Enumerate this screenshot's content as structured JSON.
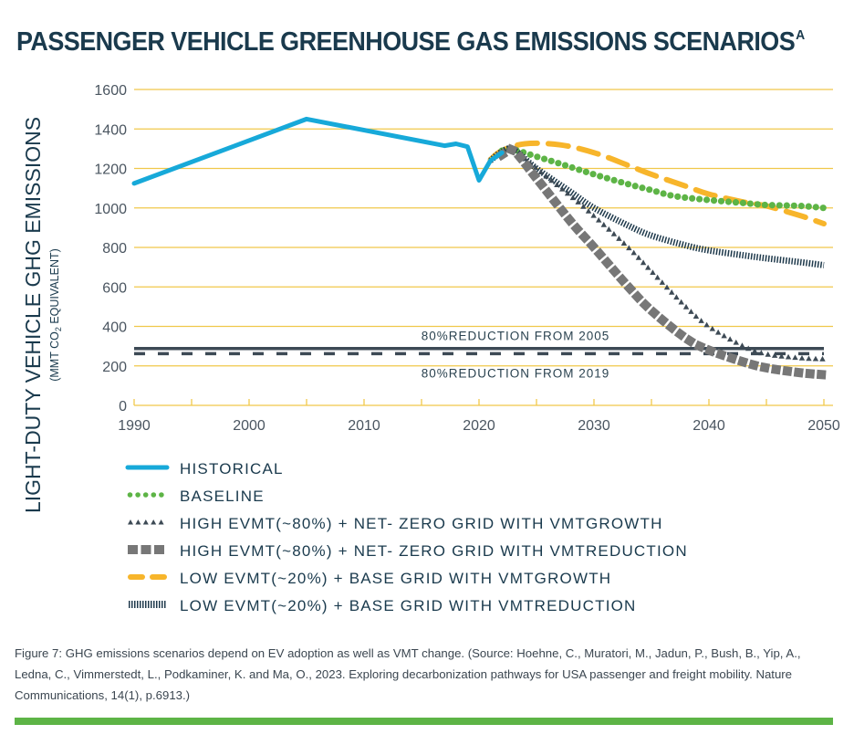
{
  "title": {
    "text": "PASSENGER VEHICLE GREENHOUSE GAS EMISSIONS SCENARIOS",
    "superscript": "A"
  },
  "chart_data": {
    "type": "line",
    "title": "PASSENGER VEHICLE GREENHOUSE GAS EMISSIONS SCENARIOS",
    "xlabel": "",
    "ylabel": "LIGHT-DUTY VEHICLE GHG EMISSIONS",
    "ylabel_sub_prefix": "(MMT CO",
    "ylabel_sub_subscript": "2",
    "ylabel_sub_suffix": " EQUIVALENT)",
    "xlim": [
      1990,
      2050
    ],
    "ylim": [
      0,
      1600
    ],
    "x_ticks": [
      1990,
      1995,
      2000,
      2005,
      2010,
      2015,
      2020,
      2025,
      2030,
      2035,
      2040,
      2045,
      2050
    ],
    "x_tick_labels": [
      "1990",
      "2000",
      "2010",
      "2020",
      "2030",
      "2040",
      "2050"
    ],
    "x_tick_label_values": [
      1990,
      2000,
      2010,
      2020,
      2030,
      2040,
      2050
    ],
    "y_ticks": [
      0,
      200,
      400,
      600,
      800,
      1000,
      1200,
      1400,
      1600
    ],
    "y_tick_labels": [
      "0",
      "200",
      "400",
      "600",
      "800",
      "1000",
      "1200",
      "1400",
      "1600"
    ],
    "grid": "horizontal",
    "grid_color": "#f0c84a",
    "legend_position": "bottom",
    "series": [
      {
        "id": "historical",
        "name": "HISTORICAL",
        "style": "solid",
        "color": "#17a9d9",
        "x": [
          1990,
          2005,
          2017,
          2018,
          2019,
          2020,
          2021,
          2022
        ],
        "y": [
          1124,
          1450,
          1315,
          1325,
          1310,
          1140,
          1240,
          1280
        ]
      },
      {
        "id": "baseline",
        "name": "BASELINE",
        "style": "dots",
        "color": "#5db446",
        "x": [
          2022,
          2023,
          2025,
          2027,
          2030,
          2033,
          2035,
          2037,
          2040,
          2043,
          2045,
          2048,
          2050
        ],
        "y": [
          1290,
          1295,
          1260,
          1225,
          1170,
          1120,
          1090,
          1060,
          1040,
          1025,
          1015,
          1010,
          1000
        ]
      },
      {
        "id": "high-ev-growth",
        "name": "HIGH EVMT(~80%) + NET- ZERO GRID WITH VMTGROWTH",
        "style": "triangles",
        "color": "#3d4a55",
        "x": [
          2022,
          2023,
          2025,
          2028,
          2030,
          2033,
          2035,
          2038,
          2040,
          2043,
          2045,
          2048,
          2050
        ],
        "y": [
          1280,
          1295,
          1200,
          1060,
          960,
          800,
          680,
          500,
          400,
          300,
          260,
          240,
          235
        ]
      },
      {
        "id": "high-ev-reduction",
        "name": "HIGH EVMT(~80%) + NET- ZERO GRID WITH VMTREDUCTION",
        "style": "squares",
        "color": "#777777",
        "x": [
          2022,
          2023,
          2025,
          2028,
          2030,
          2033,
          2035,
          2038,
          2040,
          2043,
          2045,
          2048,
          2050
        ],
        "y": [
          1270,
          1290,
          1150,
          930,
          800,
          600,
          480,
          340,
          280,
          220,
          190,
          165,
          155
        ]
      },
      {
        "id": "low-ev-growth",
        "name": "LOW EVMT(~20%) + BASE GRID WITH VMTGROWTH",
        "style": "dashed",
        "color": "#f7b52b",
        "x": [
          2021,
          2022,
          2024,
          2027,
          2030,
          2033,
          2035,
          2038,
          2040,
          2043,
          2045,
          2048,
          2050
        ],
        "y": [
          1245,
          1290,
          1325,
          1320,
          1280,
          1215,
          1170,
          1110,
          1070,
          1030,
          1010,
          960,
          920
        ]
      },
      {
        "id": "low-ev-reduction",
        "name": "LOW EVMT(~20%) + BASE GRID WITH VMTREDUCTION",
        "style": "hatched",
        "color": "#1f3a4c",
        "x": [
          2021,
          2022,
          2023,
          2025,
          2028,
          2030,
          2033,
          2035,
          2038,
          2040,
          2043,
          2045,
          2048,
          2050
        ],
        "y": [
          1240,
          1285,
          1295,
          1200,
          1080,
          1000,
          910,
          860,
          810,
          785,
          760,
          745,
          725,
          710
        ]
      }
    ],
    "reference_lines": [
      {
        "id": "ref-2005",
        "label": "80%REDUCTION FROM 2005",
        "value": 288,
        "style": "solid",
        "color": "#3d4a55",
        "label_position": "above"
      },
      {
        "id": "ref-2019",
        "label": "80%REDUCTION FROM 2019",
        "value": 262,
        "style": "dashed",
        "color": "#3d4a55",
        "label_position": "below"
      }
    ]
  },
  "caption": "Figure 7: GHG emissions scenarios depend on EV adoption as well as VMT change. (Source: Hoehne, C., Muratori, M., Jadun, P., Bush, B., Yip, A., Ledna, C., Vimmerstedt, L., Podkaminer, K. and Ma, O., 2023. Exploring decarbonization pathways for USA passenger and freight mobility. Nature Communications, 14(1), p.6913.)",
  "colors": {
    "title": "#1a3a4d",
    "accent_rule": "#5db446",
    "grid": "#f0c84a"
  }
}
